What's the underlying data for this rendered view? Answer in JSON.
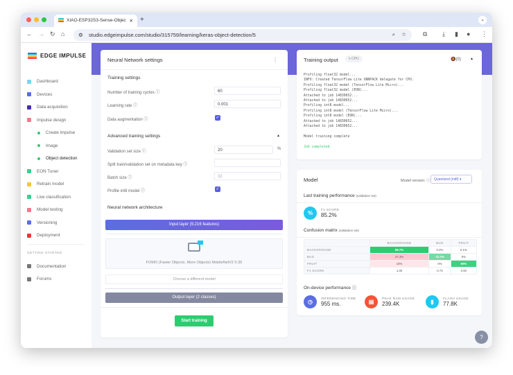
{
  "browser": {
    "tab_title": "XIAO-ESP32S3-Sense-Objec",
    "url": "studio.edgeimpulse.com/studio/315759/learning/keras-object-detection/5"
  },
  "sidebar": {
    "logo": "EDGE IMPULSE",
    "items": [
      {
        "label": "Dashboard",
        "color": "#7fd3f0"
      },
      {
        "label": "Devices",
        "color": "#5b6ee1"
      },
      {
        "label": "Data acquisition",
        "color": "#4a2fa8"
      },
      {
        "label": "Impulse design",
        "color": "#f07a8a"
      },
      {
        "label": "Create impulse",
        "sub": true
      },
      {
        "label": "Image",
        "sub": true
      },
      {
        "label": "Object detection",
        "sub": true,
        "active": true
      },
      {
        "label": "EON Tuner",
        "color": "#3ccf8e"
      },
      {
        "label": "Retrain model",
        "color": "#f5c542"
      },
      {
        "label": "Live classification",
        "color": "#3ccf8e"
      },
      {
        "label": "Model testing",
        "color": "#f07a8a"
      },
      {
        "label": "Versioning",
        "color": "#5b6ee1"
      },
      {
        "label": "Deployment",
        "color": "#e53935"
      }
    ],
    "section": "GETTING STARTED",
    "extra": [
      {
        "label": "Documentation"
      },
      {
        "label": "Forums"
      }
    ]
  },
  "nn": {
    "title": "Neural Network settings",
    "training_heading": "Training settings",
    "cycles_label": "Number of training cycles ⓘ",
    "cycles": "60",
    "lr_label": "Learning rate ⓘ",
    "lr": "0.001",
    "aug_label": "Data augmentation ⓘ",
    "adv_heading": "Advanced training settings",
    "val_label": "Validation set size ⓘ",
    "val": "20",
    "val_unit": "%",
    "split_label": "Split train/validation set on metadata key ⓘ",
    "split": "",
    "batch_label": "Batch size ⓘ",
    "batch": "32",
    "int8_label": "Profile int8 model ⓘ",
    "arch_heading": "Neural network architecture",
    "input_layer": "Input layer (9,216 features)",
    "model_name": "FOMO (Faster Objects, More Objects) MobileNetV2 0.35",
    "choose": "Choose a different model",
    "output_layer": "Output layer (2 classes)",
    "start": "Start training"
  },
  "output": {
    "title": "Training output",
    "badge": "CPU",
    "notif": "(0)",
    "log": "Profiling float32 model...\nINFO: Created TensorFlow Lite XNNPACK delegate for CPU.\nProfiling float32 model (TensorFlow Lite Micro)...\nProfiling float32 model (EON)...\nAttached to job 14830652...\nAttached to job 14830652...\nProfiling int8 model...\nProfiling int8 model (TensorFlow Lite Micro)...\nProfiling int8 model (EON)...\nAttached to job 14830652...\nAttached to job 14830652...\n\nModel training complete\n",
    "done": "Job completed"
  },
  "model": {
    "title": "Model",
    "version_label": "Model version: ⓘ",
    "version": "Quantized (int8)",
    "perf_heading": "Last training performance",
    "perf_note": "(validation set)",
    "f1_label": "F1 SCORE",
    "f1": "85.2%",
    "cm_heading": "Confusion matrix",
    "cm_note": "(validation set)",
    "cm_cols": [
      "BACKGROUND",
      "BUG",
      "FRUIT"
    ],
    "cm_rows": [
      {
        "label": "BACKGROUND",
        "cells": [
          "99.7%",
          "0.2%",
          "0.1%"
        ]
      },
      {
        "label": "BUG",
        "cells": [
          "27.3%",
          "72.7%",
          "0%"
        ]
      },
      {
        "label": "FRUIT",
        "cells": [
          "10%",
          "0%",
          "90%"
        ]
      },
      {
        "label": "F1 SCORE",
        "cells": [
          "1.00",
          "0.73",
          "0.92"
        ]
      }
    ],
    "device_heading": "On-device performance ⓘ",
    "inference_label": "INFERENCING TIME",
    "inference": "955 ms.",
    "ram_label": "PEAK RAM USAGE",
    "ram": "239.4K",
    "flash_label": "FLASH USAGE",
    "flash": "77.8K"
  },
  "colors": {
    "accent": "#5b5fd6",
    "green": "#2ecc71",
    "band": "#6b66d9"
  }
}
